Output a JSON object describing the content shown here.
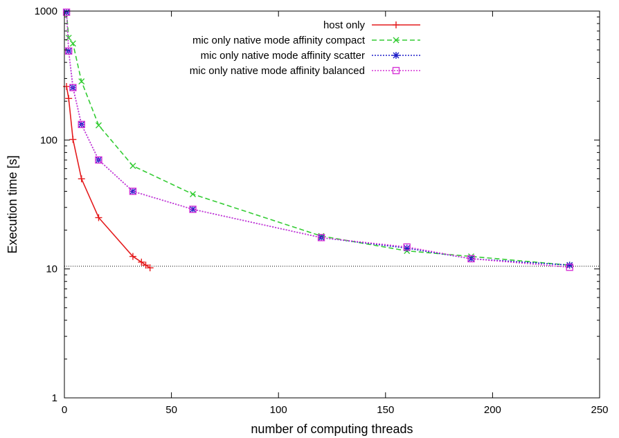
{
  "chart_data": {
    "type": "line",
    "xlabel": "number of computing threads",
    "ylabel": "Execution time [s]",
    "xlim": [
      0,
      250
    ],
    "ylim": [
      1,
      1000
    ],
    "yscale": "log",
    "xticks": [
      0,
      50,
      100,
      150,
      200,
      250
    ],
    "yticks": [
      1,
      10,
      100,
      1000
    ],
    "xtick_labels": [
      "0",
      "50",
      "100",
      "150",
      "200",
      "250"
    ],
    "ytick_labels": [
      "1",
      "10",
      "100",
      "1000"
    ],
    "grid": false,
    "legend_position": "top-right",
    "reference_line": {
      "y": 10.5,
      "style": "dotted",
      "color": "#000000"
    },
    "series": [
      {
        "name": "host only",
        "color": "#e41a1c",
        "dash": "solid",
        "marker": "plus",
        "x": [
          1,
          2,
          4,
          8,
          16,
          32,
          36,
          38,
          40
        ],
        "y": [
          260,
          210,
          101,
          50,
          25,
          12.5,
          11.3,
          10.7,
          10.2
        ]
      },
      {
        "name": "mic only native mode affinity compact",
        "color": "#33cc33",
        "dash": "dashed",
        "marker": "cross",
        "x": [
          1,
          2,
          4,
          8,
          16,
          32,
          60,
          120,
          160,
          190,
          236
        ],
        "y": [
          980,
          620,
          560,
          285,
          130,
          63,
          38,
          18,
          13.8,
          12.5,
          10.7
        ]
      },
      {
        "name": "mic only native mode affinity scatter",
        "color": "#1c1cc8",
        "dash": "dotted",
        "marker": "star",
        "x": [
          1,
          2,
          4,
          8,
          16,
          32,
          60,
          120,
          160,
          190,
          236
        ],
        "y": [
          980,
          490,
          255,
          132,
          70,
          40,
          29,
          17.5,
          14.5,
          12,
          10.7
        ]
      },
      {
        "name": "mic only native mode affinity balanced",
        "color": "#d633d6",
        "dash": "dotted",
        "marker": "square",
        "x": [
          1,
          2,
          4,
          8,
          16,
          32,
          60,
          120,
          160,
          190,
          236
        ],
        "y": [
          980,
          490,
          255,
          132,
          70,
          40,
          29,
          17.5,
          14.8,
          12,
          10.3
        ]
      }
    ]
  }
}
